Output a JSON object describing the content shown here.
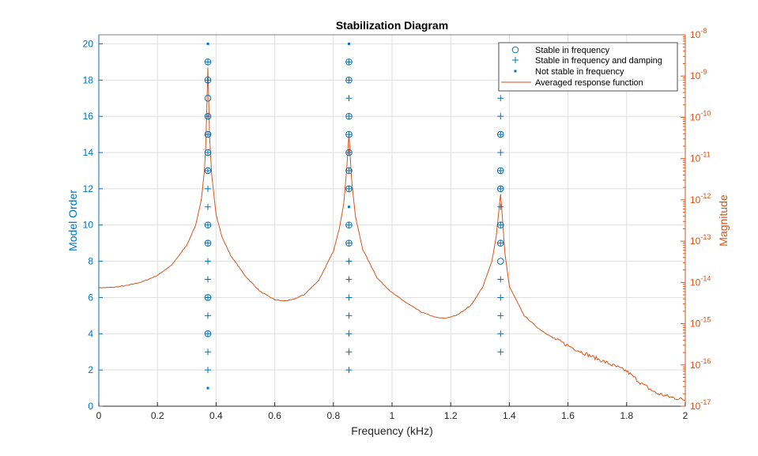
{
  "chart_data": {
    "type": "scatter",
    "title": "Stabilization Diagram",
    "xlabel": "Frequency (kHz)",
    "ylabel": "Model Order",
    "ylabel_right": "Magnitude",
    "xlim": [
      0,
      2
    ],
    "ylim": [
      0,
      20.5
    ],
    "ylim_right": [
      -17,
      -8
    ],
    "x_ticks": [
      "0",
      "0.2",
      "0.4",
      "0.6",
      "0.8",
      "1",
      "1.2",
      "1.4",
      "1.6",
      "1.8",
      "2"
    ],
    "y_ticks": [
      "0",
      "2",
      "4",
      "6",
      "8",
      "10",
      "12",
      "14",
      "16",
      "18",
      "20"
    ],
    "y_right_ticks": [
      {
        "base": "10",
        "exp": "-17",
        "value": -17
      },
      {
        "base": "10",
        "exp": "-16",
        "value": -16
      },
      {
        "base": "10",
        "exp": "-15",
        "value": -15
      },
      {
        "base": "10",
        "exp": "-14",
        "value": -14
      },
      {
        "base": "10",
        "exp": "-13",
        "value": -13
      },
      {
        "base": "10",
        "exp": "-12",
        "value": -12
      },
      {
        "base": "10",
        "exp": "-11",
        "value": -11
      },
      {
        "base": "10",
        "exp": "-10",
        "value": -10
      },
      {
        "base": "10",
        "exp": "-9",
        "value": -9
      },
      {
        "base": "10",
        "exp": "-8",
        "value": -8
      }
    ],
    "grid": true,
    "legend_position": "top-right",
    "colors": {
      "left_axis": "#0072BD",
      "right_axis": "#D95319",
      "grid": "#dfdfdf"
    },
    "series": [
      {
        "name": "Stable in frequency",
        "marker": "circle",
        "points": [
          {
            "x": 0.372,
            "y": 4
          },
          {
            "x": 0.372,
            "y": 6
          },
          {
            "x": 0.372,
            "y": 9
          },
          {
            "x": 0.372,
            "y": 10
          },
          {
            "x": 0.372,
            "y": 13
          },
          {
            "x": 0.372,
            "y": 14
          },
          {
            "x": 0.372,
            "y": 15
          },
          {
            "x": 0.372,
            "y": 16
          },
          {
            "x": 0.372,
            "y": 17
          },
          {
            "x": 0.372,
            "y": 18
          },
          {
            "x": 0.372,
            "y": 19
          },
          {
            "x": 0.853,
            "y": 9
          },
          {
            "x": 0.853,
            "y": 10
          },
          {
            "x": 0.853,
            "y": 12
          },
          {
            "x": 0.853,
            "y": 13
          },
          {
            "x": 0.853,
            "y": 14
          },
          {
            "x": 0.853,
            "y": 15
          },
          {
            "x": 0.853,
            "y": 16
          },
          {
            "x": 0.853,
            "y": 18
          },
          {
            "x": 0.853,
            "y": 19
          },
          {
            "x": 1.37,
            "y": 8
          },
          {
            "x": 1.37,
            "y": 9
          },
          {
            "x": 1.37,
            "y": 10
          },
          {
            "x": 1.37,
            "y": 12
          },
          {
            "x": 1.37,
            "y": 13
          },
          {
            "x": 1.37,
            "y": 15
          }
        ]
      },
      {
        "name": "Stable in frequency and damping",
        "marker": "plus",
        "points": [
          {
            "x": 0.372,
            "y": 2
          },
          {
            "x": 0.372,
            "y": 3
          },
          {
            "x": 0.372,
            "y": 4
          },
          {
            "x": 0.372,
            "y": 5
          },
          {
            "x": 0.372,
            "y": 6
          },
          {
            "x": 0.372,
            "y": 7
          },
          {
            "x": 0.372,
            "y": 8
          },
          {
            "x": 0.372,
            "y": 9
          },
          {
            "x": 0.372,
            "y": 10
          },
          {
            "x": 0.372,
            "y": 11
          },
          {
            "x": 0.372,
            "y": 12
          },
          {
            "x": 0.372,
            "y": 13
          },
          {
            "x": 0.372,
            "y": 14
          },
          {
            "x": 0.372,
            "y": 15
          },
          {
            "x": 0.372,
            "y": 16
          },
          {
            "x": 0.372,
            "y": 18
          },
          {
            "x": 0.372,
            "y": 19
          },
          {
            "x": 0.853,
            "y": 2
          },
          {
            "x": 0.853,
            "y": 3
          },
          {
            "x": 0.853,
            "y": 4
          },
          {
            "x": 0.853,
            "y": 5
          },
          {
            "x": 0.853,
            "y": 6
          },
          {
            "x": 0.853,
            "y": 7
          },
          {
            "x": 0.853,
            "y": 8
          },
          {
            "x": 0.853,
            "y": 9
          },
          {
            "x": 0.853,
            "y": 10
          },
          {
            "x": 0.853,
            "y": 12
          },
          {
            "x": 0.853,
            "y": 13
          },
          {
            "x": 0.853,
            "y": 14
          },
          {
            "x": 0.853,
            "y": 15
          },
          {
            "x": 0.853,
            "y": 16
          },
          {
            "x": 0.853,
            "y": 17
          },
          {
            "x": 0.853,
            "y": 18
          },
          {
            "x": 0.853,
            "y": 19
          },
          {
            "x": 1.37,
            "y": 3
          },
          {
            "x": 1.37,
            "y": 4
          },
          {
            "x": 1.37,
            "y": 5
          },
          {
            "x": 1.37,
            "y": 6
          },
          {
            "x": 1.37,
            "y": 7
          },
          {
            "x": 1.37,
            "y": 9
          },
          {
            "x": 1.37,
            "y": 10
          },
          {
            "x": 1.37,
            "y": 11
          },
          {
            "x": 1.37,
            "y": 12
          },
          {
            "x": 1.37,
            "y": 13
          },
          {
            "x": 1.37,
            "y": 14
          },
          {
            "x": 1.37,
            "y": 15
          },
          {
            "x": 1.37,
            "y": 16
          },
          {
            "x": 1.37,
            "y": 17
          }
        ]
      },
      {
        "name": "Not stable in frequency",
        "marker": "dot",
        "points": [
          {
            "x": 0.372,
            "y": 1
          },
          {
            "x": 0.372,
            "y": 20
          },
          {
            "x": 0.853,
            "y": 11
          },
          {
            "x": 0.853,
            "y": 20
          },
          {
            "x": 1.37,
            "y": 18
          }
        ]
      },
      {
        "name": "Averaged response function",
        "type": "line",
        "axis": "right",
        "log10_points": [
          [
            0.0,
            -14.13
          ],
          [
            0.05,
            -14.12
          ],
          [
            0.1,
            -14.07
          ],
          [
            0.15,
            -13.98
          ],
          [
            0.2,
            -13.83
          ],
          [
            0.25,
            -13.57
          ],
          [
            0.3,
            -13.1
          ],
          [
            0.33,
            -12.62
          ],
          [
            0.35,
            -11.98
          ],
          [
            0.36,
            -11.3
          ],
          [
            0.365,
            -10.65
          ],
          [
            0.372,
            -8.8
          ],
          [
            0.378,
            -10.5
          ],
          [
            0.385,
            -11.4
          ],
          [
            0.4,
            -12.35
          ],
          [
            0.42,
            -12.9
          ],
          [
            0.45,
            -13.35
          ],
          [
            0.5,
            -13.85
          ],
          [
            0.55,
            -14.22
          ],
          [
            0.6,
            -14.42
          ],
          [
            0.63,
            -14.45
          ],
          [
            0.66,
            -14.42
          ],
          [
            0.7,
            -14.3
          ],
          [
            0.75,
            -13.95
          ],
          [
            0.8,
            -13.25
          ],
          [
            0.82,
            -12.7
          ],
          [
            0.835,
            -12.1
          ],
          [
            0.845,
            -11.3
          ],
          [
            0.853,
            -10.4
          ],
          [
            0.862,
            -11.5
          ],
          [
            0.875,
            -12.4
          ],
          [
            0.9,
            -13.2
          ],
          [
            0.95,
            -13.9
          ],
          [
            1.0,
            -14.25
          ],
          [
            1.05,
            -14.5
          ],
          [
            1.1,
            -14.72
          ],
          [
            1.15,
            -14.85
          ],
          [
            1.18,
            -14.87
          ],
          [
            1.22,
            -14.8
          ],
          [
            1.27,
            -14.55
          ],
          [
            1.31,
            -14.1
          ],
          [
            1.34,
            -13.5
          ],
          [
            1.355,
            -12.9
          ],
          [
            1.365,
            -12.2
          ],
          [
            1.37,
            -11.87
          ],
          [
            1.375,
            -12.3
          ],
          [
            1.385,
            -13.3
          ],
          [
            1.4,
            -14.1
          ],
          [
            1.45,
            -14.8
          ],
          [
            1.5,
            -15.12
          ],
          [
            1.55,
            -15.35
          ],
          [
            1.6,
            -15.53
          ],
          [
            1.65,
            -15.7
          ],
          [
            1.7,
            -15.85
          ],
          [
            1.75,
            -16.0
          ],
          [
            1.8,
            -16.15
          ],
          [
            1.85,
            -16.45
          ],
          [
            1.9,
            -16.68
          ],
          [
            1.95,
            -16.78
          ],
          [
            2.0,
            -16.85
          ]
        ]
      }
    ]
  }
}
